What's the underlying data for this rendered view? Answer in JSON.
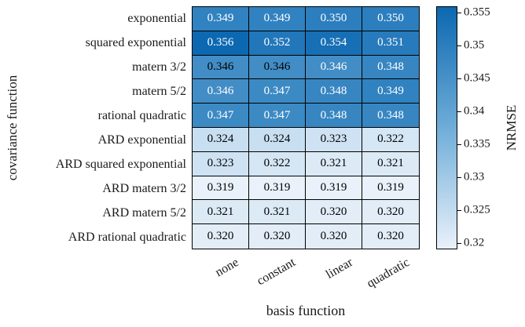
{
  "figure": {
    "background": "#ffffff",
    "text_color": "#1a1a1a"
  },
  "chart_data": {
    "type": "heatmap",
    "title": "",
    "xlabel": "basis function",
    "ylabel": "covariance function",
    "colorbar_label": "NRMSE",
    "x_categories": [
      "none",
      "constant",
      "linear",
      "quadratic"
    ],
    "y_categories": [
      "exponential",
      "squared exponential",
      "matern 3/2",
      "matern 5/2",
      "rational quadratic",
      "ARD exponential",
      "ARD squared exponential",
      "ARD matern 3/2",
      "ARD matern 5/2",
      "ARD rational quadratic"
    ],
    "values": [
      [
        0.349,
        0.349,
        0.35,
        0.35
      ],
      [
        0.356,
        0.352,
        0.354,
        0.351
      ],
      [
        0.346,
        0.346,
        0.346,
        0.348
      ],
      [
        0.346,
        0.347,
        0.348,
        0.349
      ],
      [
        0.347,
        0.347,
        0.348,
        0.348
      ],
      [
        0.324,
        0.324,
        0.323,
        0.322
      ],
      [
        0.323,
        0.322,
        0.321,
        0.321
      ],
      [
        0.319,
        0.319,
        0.319,
        0.319
      ],
      [
        0.321,
        0.321,
        0.32,
        0.32
      ],
      [
        0.32,
        0.32,
        0.32,
        0.32
      ]
    ],
    "cell_text_colors": [
      [
        "white",
        "white",
        "white",
        "white"
      ],
      [
        "white",
        "white",
        "white",
        "white"
      ],
      [
        "black",
        "black",
        "white",
        "white"
      ],
      [
        "white",
        "white",
        "white",
        "white"
      ],
      [
        "white",
        "white",
        "white",
        "white"
      ],
      [
        "black",
        "black",
        "black",
        "black"
      ],
      [
        "black",
        "black",
        "black",
        "black"
      ],
      [
        "black",
        "black",
        "black",
        "black"
      ],
      [
        "black",
        "black",
        "black",
        "black"
      ],
      [
        "black",
        "black",
        "black",
        "black"
      ]
    ],
    "value_format_decimals": 3,
    "color_range": [
      0.319,
      0.356
    ],
    "colorbar_ticks": [
      "0.32",
      "0.325",
      "0.33",
      "0.335",
      "0.34",
      "0.345",
      "0.35",
      "0.355"
    ],
    "colormap": {
      "low": "#e9f1fa",
      "mid": "#6fadd8",
      "high": "#0c68b1"
    },
    "grid_line_color": "#000000",
    "legend_position": "right-colorbar",
    "grid_on": true
  }
}
